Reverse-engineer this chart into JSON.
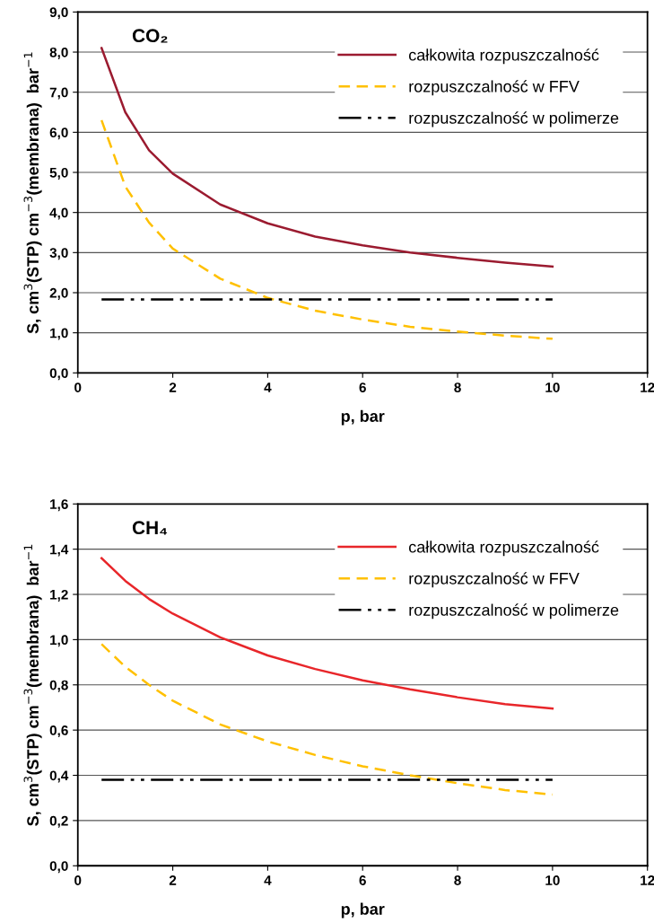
{
  "chart_data": [
    {
      "type": "line",
      "title": "CO₂",
      "xlabel": "p, bar",
      "ylabel": "S, cm$^{3}$(STP) cm$^{−3}$(membrana)  bar$^{−1}$",
      "x": [
        0.5,
        1,
        1.5,
        2,
        3,
        4,
        5,
        6,
        7,
        8,
        9,
        10
      ],
      "series": [
        {
          "name": "całkowita rozpuszczalność",
          "color": "#9b1b30",
          "line_style": "solid",
          "values": [
            8.1,
            6.5,
            5.55,
            4.97,
            4.2,
            3.73,
            3.4,
            3.18,
            3.0,
            2.87,
            2.75,
            2.65
          ]
        },
        {
          "name": "rozpuszczalność w FFV",
          "color": "#ffc000",
          "line_style": "dashed",
          "values": [
            6.3,
            4.65,
            3.75,
            3.1,
            2.35,
            1.87,
            1.55,
            1.33,
            1.15,
            1.03,
            0.93,
            0.85
          ]
        },
        {
          "name": "rozpuszczalność w polimerze",
          "color": "#000000",
          "line_style": "dashdotdot",
          "values": [
            1.83,
            1.83,
            1.83,
            1.83,
            1.83,
            1.83,
            1.83,
            1.83,
            1.83,
            1.83,
            1.83,
            1.83
          ]
        }
      ],
      "xlim": [
        0,
        12
      ],
      "xticks": [
        0,
        2,
        4,
        6,
        8,
        10,
        12
      ],
      "ylim": [
        0,
        9
      ],
      "yticks": [
        {
          "value": 0,
          "label": "0,0"
        },
        {
          "value": 1,
          "label": "1,0"
        },
        {
          "value": 2,
          "label": "2,0"
        },
        {
          "value": 3,
          "label": "3,0"
        },
        {
          "value": 4,
          "label": "4,0"
        },
        {
          "value": 5,
          "label": "5,0"
        },
        {
          "value": 6,
          "label": "6,0"
        },
        {
          "value": 7,
          "label": "7,0"
        },
        {
          "value": 8,
          "label": "8,0"
        },
        {
          "value": 9,
          "label": "9,0"
        }
      ],
      "grid": "y",
      "legend": "top right",
      "marker": "none"
    },
    {
      "type": "line",
      "title": "CH₄",
      "xlabel": "p, bar",
      "ylabel": "S, cm$^{3}$(STP) cm$^{−3}$(membrana)  bar$^{−1}$",
      "x": [
        0.5,
        1,
        1.5,
        2,
        3,
        4,
        5,
        6,
        7,
        8,
        9,
        10
      ],
      "series": [
        {
          "name": "całkowita rozpuszczalność",
          "color": "#e8262a",
          "line_style": "solid",
          "values": [
            1.36,
            1.26,
            1.18,
            1.115,
            1.01,
            0.93,
            0.87,
            0.82,
            0.78,
            0.745,
            0.715,
            0.695
          ]
        },
        {
          "name": "rozpuszczalność w FFV",
          "color": "#ffc000",
          "line_style": "dashed",
          "values": [
            0.98,
            0.88,
            0.8,
            0.73,
            0.625,
            0.55,
            0.49,
            0.44,
            0.4,
            0.365,
            0.335,
            0.315
          ]
        },
        {
          "name": "rozpuszczalność w polimerze",
          "color": "#000000",
          "line_style": "dashdotdot",
          "values": [
            0.38,
            0.38,
            0.38,
            0.38,
            0.38,
            0.38,
            0.38,
            0.38,
            0.38,
            0.38,
            0.38,
            0.38
          ]
        }
      ],
      "xlim": [
        0,
        12
      ],
      "xticks": [
        0,
        2,
        4,
        6,
        8,
        10,
        12
      ],
      "ylim": [
        0,
        1.6
      ],
      "yticks": [
        {
          "value": 0,
          "label": "0,0"
        },
        {
          "value": 0.2,
          "label": "0,2"
        },
        {
          "value": 0.4,
          "label": "0,4"
        },
        {
          "value": 0.6,
          "label": "0,6"
        },
        {
          "value": 0.8,
          "label": "0,8"
        },
        {
          "value": 1.0,
          "label": "1,0"
        },
        {
          "value": 1.2,
          "label": "1,2"
        },
        {
          "value": 1.4,
          "label": "1,4"
        },
        {
          "value": 1.6,
          "label": "1,6"
        }
      ],
      "grid": "y",
      "legend": "top right",
      "marker": "none"
    }
  ]
}
